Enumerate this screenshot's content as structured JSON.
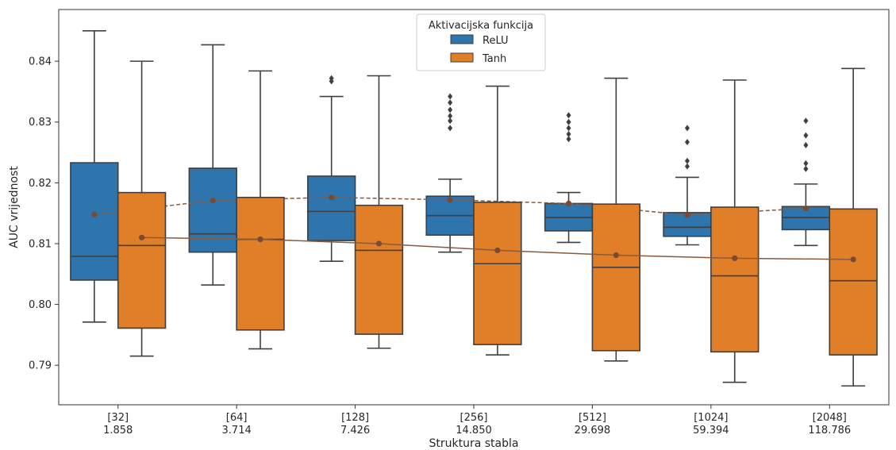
{
  "chart_data": {
    "type": "box",
    "xlabel": "Struktura stabla",
    "ylabel": "AUC vrijednost",
    "ylim": [
      0.7835,
      0.8485
    ],
    "yticks": [
      "0.79",
      "0.80",
      "0.81",
      "0.82",
      "0.83",
      "0.84"
    ],
    "categories": [
      {
        "line1": "[32]",
        "line2": "1.858"
      },
      {
        "line1": "[64]",
        "line2": "3.714"
      },
      {
        "line1": "[128]",
        "line2": "7.426"
      },
      {
        "line1": "[256]",
        "line2": "14.850"
      },
      {
        "line1": "[512]",
        "line2": "29.698"
      },
      {
        "line1": "[1024]",
        "line2": "59.394"
      },
      {
        "line1": "[2048]",
        "line2": "118.786"
      }
    ],
    "legend": {
      "title": "Aktivacijska funkcija",
      "placement": "top-center"
    },
    "grid": false,
    "series": [
      {
        "name": "ReLU",
        "color": "#2e75ad",
        "mean_line": "dashed",
        "boxes": [
          {
            "whislo": 0.7971,
            "q1": 0.804,
            "med": 0.8079,
            "q3": 0.8233,
            "whishi": 0.845,
            "mean": 0.8148,
            "fliers": []
          },
          {
            "whislo": 0.8032,
            "q1": 0.8086,
            "med": 0.8116,
            "q3": 0.8224,
            "whishi": 0.8427,
            "mean": 0.8171,
            "fliers": []
          },
          {
            "whislo": 0.8071,
            "q1": 0.8105,
            "med": 0.8153,
            "q3": 0.8211,
            "whishi": 0.8342,
            "mean": 0.8176,
            "fliers": [
              0.8367,
              0.8372
            ]
          },
          {
            "whislo": 0.8086,
            "q1": 0.8114,
            "med": 0.8146,
            "q3": 0.8178,
            "whishi": 0.8206,
            "mean": 0.8172,
            "fliers": [
              0.829,
              0.8302,
              0.831,
              0.832,
              0.8332,
              0.8342
            ]
          },
          {
            "whislo": 0.8102,
            "q1": 0.8121,
            "med": 0.8143,
            "q3": 0.8166,
            "whishi": 0.8184,
            "mean": 0.8166,
            "fliers": [
              0.8272,
              0.828,
              0.829,
              0.83,
              0.8311
            ]
          },
          {
            "whislo": 0.8098,
            "q1": 0.8112,
            "med": 0.8127,
            "q3": 0.8151,
            "whishi": 0.8209,
            "mean": 0.8147,
            "fliers": [
              0.8227,
              0.8236,
              0.8267,
              0.829
            ]
          },
          {
            "whislo": 0.8097,
            "q1": 0.8123,
            "med": 0.8143,
            "q3": 0.8161,
            "whishi": 0.8198,
            "mean": 0.8158,
            "fliers": [
              0.8223,
              0.8232,
              0.8262,
              0.8278,
              0.8302
            ]
          }
        ]
      },
      {
        "name": "Tanh",
        "color": "#e07f27",
        "mean_line": "solid",
        "boxes": [
          {
            "whislo": 0.7915,
            "q1": 0.7961,
            "med": 0.8097,
            "q3": 0.8184,
            "whishi": 0.84,
            "mean": 0.811,
            "fliers": []
          },
          {
            "whislo": 0.7927,
            "q1": 0.7958,
            "med": 0.8107,
            "q3": 0.8176,
            "whishi": 0.8384,
            "mean": 0.8107,
            "fliers": []
          },
          {
            "whislo": 0.7928,
            "q1": 0.7951,
            "med": 0.8089,
            "q3": 0.8163,
            "whishi": 0.8376,
            "mean": 0.81,
            "fliers": []
          },
          {
            "whislo": 0.7917,
            "q1": 0.7934,
            "med": 0.8067,
            "q3": 0.8168,
            "whishi": 0.8359,
            "mean": 0.8089,
            "fliers": []
          },
          {
            "whislo": 0.7907,
            "q1": 0.7924,
            "med": 0.8061,
            "q3": 0.8165,
            "whishi": 0.8372,
            "mean": 0.8081,
            "fliers": []
          },
          {
            "whislo": 0.7872,
            "q1": 0.7922,
            "med": 0.8047,
            "q3": 0.816,
            "whishi": 0.8369,
            "mean": 0.8076,
            "fliers": []
          },
          {
            "whislo": 0.7866,
            "q1": 0.7917,
            "med": 0.8039,
            "q3": 0.8157,
            "whishi": 0.8388,
            "mean": 0.8074,
            "fliers": []
          }
        ]
      }
    ]
  }
}
